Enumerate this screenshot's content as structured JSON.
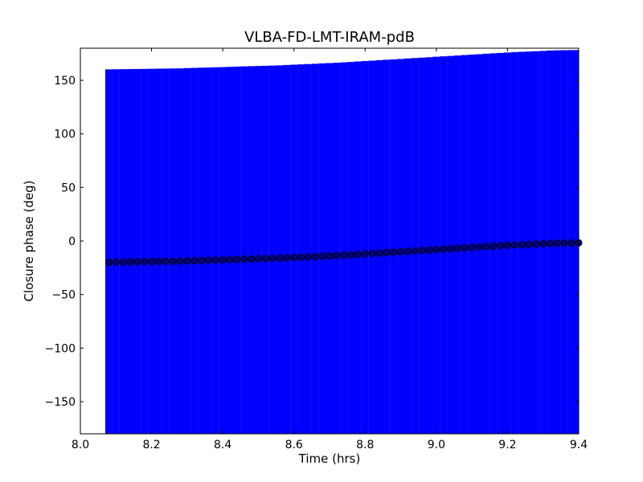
{
  "chart_data": {
    "type": "scatter",
    "title": "VLBA-FD-LMT-IRAM-pdB",
    "xlabel": "Time (hrs)",
    "ylabel": "Closure phase (deg)",
    "xlim": [
      8.0,
      9.4
    ],
    "ylim": [
      -180,
      180
    ],
    "xticks": [
      8.0,
      8.2,
      8.4,
      8.6,
      8.8,
      9.0,
      9.2,
      9.4
    ],
    "xtick_labels": [
      "8.0",
      "8.2",
      "8.4",
      "8.6",
      "8.8",
      "9.0",
      "9.2",
      "9.4"
    ],
    "yticks": [
      -150,
      -100,
      -50,
      0,
      50,
      100,
      150
    ],
    "ytick_labels": [
      "−150",
      "−100",
      "−50",
      "0",
      "50",
      "100",
      "150"
    ],
    "grid": false,
    "colors": {
      "errorbar": "#0000ff",
      "marker": "#000080"
    },
    "series": [
      {
        "x": [
          8.08,
          8.1,
          8.12,
          8.14,
          8.16,
          8.18,
          8.2,
          8.22,
          8.24,
          8.26,
          8.28,
          8.3,
          8.32,
          8.34,
          8.36,
          8.38,
          8.4,
          8.42,
          8.44,
          8.46,
          8.48,
          8.5,
          8.52,
          8.54,
          8.56,
          8.58,
          8.6,
          8.62,
          8.64,
          8.66,
          8.68,
          8.7,
          8.72,
          8.74,
          8.76,
          8.78,
          8.8,
          8.82,
          8.84,
          8.86,
          8.88,
          8.9,
          8.92,
          8.94,
          8.96,
          8.98,
          9.0,
          9.02,
          9.04,
          9.06,
          9.08,
          9.1,
          9.12,
          9.14,
          9.16,
          9.18,
          9.2,
          9.22,
          9.24,
          9.26,
          9.28,
          9.3,
          9.32,
          9.34,
          9.36,
          9.38,
          9.4
        ],
        "values": [
          -19.8,
          -19.7,
          -19.6,
          -19.5,
          -19.4,
          -19.3,
          -19.2,
          -19.1,
          -19.0,
          -18.9,
          -18.8,
          -18.6,
          -18.4,
          -18.2,
          -18.0,
          -17.8,
          -17.6,
          -17.4,
          -17.2,
          -17.0,
          -16.8,
          -16.6,
          -16.4,
          -16.2,
          -16.0,
          -15.7,
          -15.4,
          -15.1,
          -14.8,
          -14.5,
          -14.2,
          -13.9,
          -13.6,
          -13.2,
          -12.8,
          -12.4,
          -12.0,
          -11.6,
          -11.2,
          -10.8,
          -10.4,
          -10.0,
          -9.6,
          -9.2,
          -8.8,
          -8.4,
          -8.0,
          -7.6,
          -7.2,
          -6.8,
          -6.4,
          -6.0,
          -5.6,
          -5.2,
          -4.8,
          -4.4,
          -4.0,
          -3.7,
          -3.4,
          -3.1,
          -2.8,
          -2.5,
          -2.2,
          -2.0,
          -1.9,
          -1.8,
          -1.7
        ],
        "errors": [
          180,
          180,
          180,
          180,
          180,
          180,
          180,
          180,
          180,
          180,
          180,
          180,
          180,
          180,
          180,
          180,
          180,
          180,
          180,
          180,
          180,
          180,
          180,
          180,
          180,
          180,
          180,
          180,
          180,
          180,
          180,
          180,
          180,
          180,
          180,
          180,
          180,
          180,
          180,
          180,
          180,
          180,
          180,
          180,
          180,
          180,
          180,
          180,
          180,
          180,
          180,
          180,
          180,
          180,
          180,
          180,
          180,
          180,
          180,
          180,
          180,
          180,
          180,
          180,
          180,
          180,
          180
        ]
      }
    ]
  }
}
